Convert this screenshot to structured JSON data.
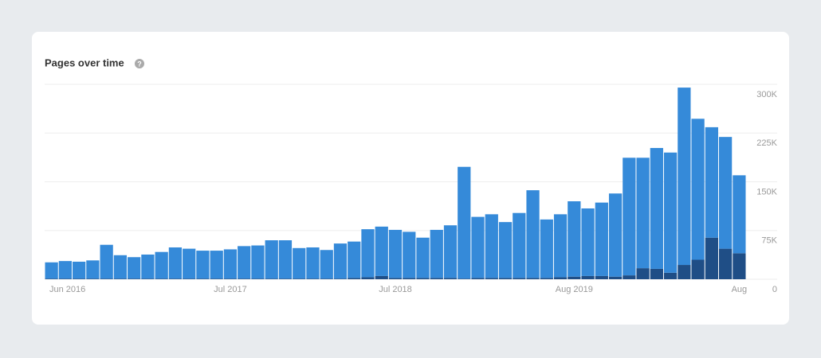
{
  "chart_data": {
    "type": "bar",
    "stacked": true,
    "title": "Pages over time",
    "help_icon": "?",
    "categories": [
      "Jun 2016",
      null,
      null,
      null,
      null,
      null,
      null,
      null,
      null,
      null,
      null,
      null,
      null,
      "Jul 2017",
      null,
      null,
      null,
      null,
      null,
      null,
      null,
      null,
      null,
      null,
      null,
      "Jul 2018",
      null,
      null,
      null,
      null,
      null,
      null,
      null,
      null,
      null,
      null,
      null,
      null,
      "Aug 2019",
      null,
      null,
      null,
      null,
      null,
      null,
      null,
      null,
      null,
      null,
      null,
      "Aug"
    ],
    "series": [
      {
        "color": "#1f4e86",
        "values": [
          1000,
          1000,
          1000,
          1000,
          1000,
          1000,
          1000,
          1000,
          1000,
          1000,
          1000,
          1000,
          1000,
          1000,
          1000,
          1000,
          1000,
          1000,
          1000,
          1000,
          1000,
          1000,
          2000,
          3000,
          5000,
          2000,
          2000,
          2000,
          2000,
          2000,
          1000,
          2000,
          2000,
          2000,
          2000,
          2000,
          2000,
          3000,
          4000,
          5000,
          5000,
          4000,
          6000,
          17000,
          16000,
          10000,
          22000,
          30000,
          64000,
          47000,
          40000
        ]
      },
      {
        "color": "#358ad9",
        "values": [
          25000,
          27000,
          26000,
          28000,
          52000,
          36000,
          33000,
          37000,
          41000,
          48000,
          46000,
          43000,
          43000,
          45000,
          50000,
          51000,
          59000,
          59000,
          47000,
          48000,
          44000,
          54000,
          56000,
          74000,
          76000,
          74000,
          71000,
          62000,
          74000,
          81000,
          172000,
          94000,
          98000,
          86000,
          100000,
          135000,
          90000,
          97000,
          116000,
          104000,
          113000,
          128000,
          181000,
          170000,
          186000,
          185000,
          273000,
          217000,
          170000,
          172000,
          120000
        ]
      }
    ],
    "ylim": [
      0,
      300000
    ],
    "yticks": [
      0,
      {
        "value": 75000,
        "label": "75K"
      },
      {
        "value": 150000,
        "label": "150K"
      },
      {
        "value": 225000,
        "label": "225K"
      },
      {
        "value": 300000,
        "label": "300K"
      }
    ],
    "grid": true
  }
}
